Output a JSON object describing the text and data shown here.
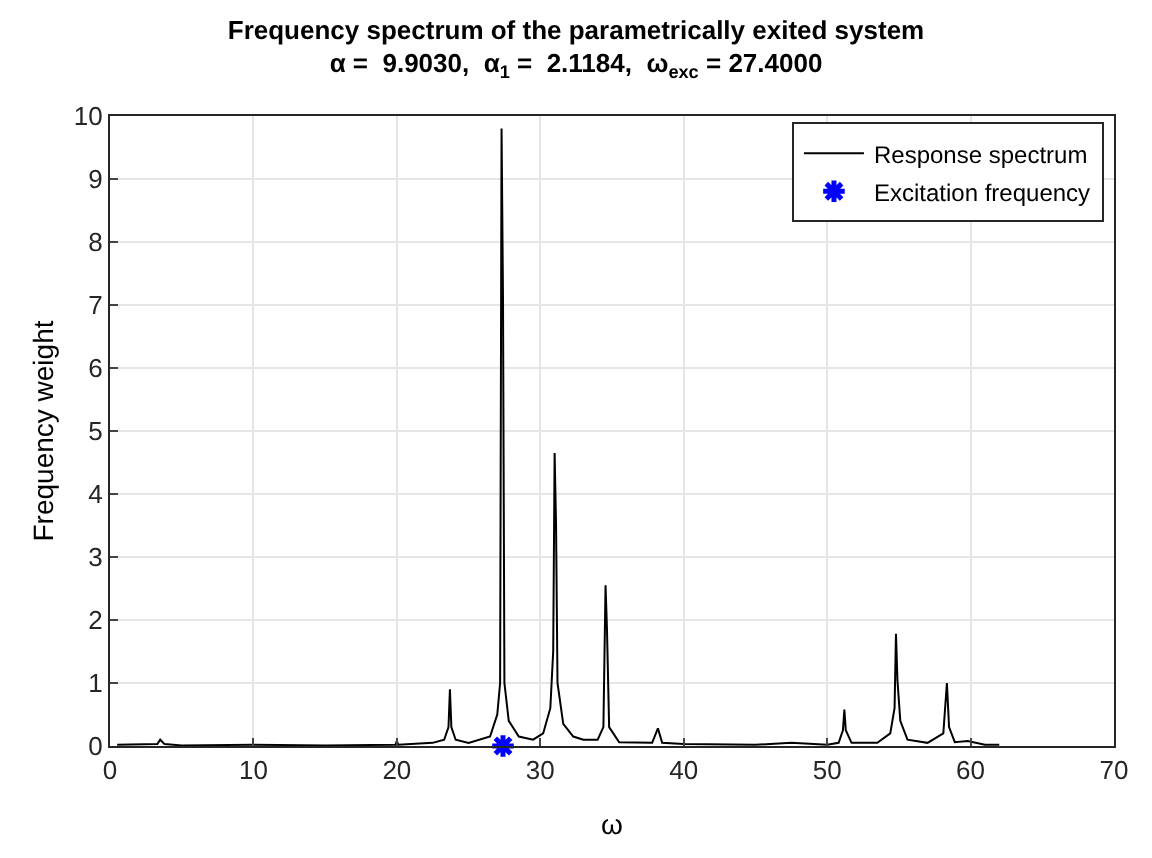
{
  "chart_data": {
    "type": "line",
    "title": "Frequency spectrum of the parametrically exited system",
    "subtitle": "α =  9.9030,  α$_{1}$ =  2.1184,  ω$_{exc}$ = 27.4000",
    "xlabel": "ω",
    "ylabel": "Frequency weight",
    "xlim": [
      0,
      70
    ],
    "xticks": [
      0,
      10,
      20,
      30,
      40,
      50,
      60,
      70
    ],
    "ylim": [
      0,
      10
    ],
    "yticks": [
      0,
      1,
      2,
      3,
      4,
      5,
      6,
      7,
      8,
      9,
      10
    ],
    "grid": true,
    "legend": "top right",
    "series": [
      {
        "name": "Response spectrum",
        "color": "#000000",
        "marker": "none",
        "x": [
          0.5,
          3.3,
          3.5,
          3.8,
          5,
          10,
          15,
          19.9,
          20,
          20.1,
          22.5,
          23.3,
          23.6,
          23.7,
          23.8,
          24.1,
          25,
          26.5,
          27.0,
          27.2,
          27.3,
          27.4,
          27.5,
          27.8,
          28.5,
          29.5,
          30.2,
          30.7,
          30.9,
          31.0,
          31.1,
          31.2,
          31.6,
          32.3,
          33,
          34,
          34.4,
          34.55,
          34.65,
          34.8,
          35.5,
          37.8,
          38.2,
          38.5,
          40,
          45,
          47.5,
          50,
          50.8,
          51.1,
          51.2,
          51.3,
          51.7,
          53.5,
          54.4,
          54.7,
          54.8,
          54.9,
          55.1,
          55.6,
          57,
          58.1,
          58.35,
          58.5,
          58.9,
          59.8,
          61,
          62
        ],
        "values": [
          0.02,
          0.03,
          0.1,
          0.03,
          0.01,
          0.02,
          0.01,
          0.02,
          0.08,
          0.02,
          0.05,
          0.1,
          0.3,
          0.9,
          0.3,
          0.1,
          0.05,
          0.15,
          0.5,
          1.0,
          9.8,
          7.1,
          1.0,
          0.4,
          0.15,
          0.1,
          0.2,
          0.6,
          1.5,
          4.65,
          3.5,
          1.0,
          0.35,
          0.15,
          0.1,
          0.1,
          0.3,
          2.55,
          1.85,
          0.3,
          0.06,
          0.05,
          0.28,
          0.05,
          0.03,
          0.02,
          0.05,
          0.02,
          0.05,
          0.25,
          0.58,
          0.25,
          0.05,
          0.05,
          0.2,
          0.6,
          1.78,
          1.05,
          0.4,
          0.1,
          0.05,
          0.2,
          1.0,
          0.3,
          0.06,
          0.08,
          0.02,
          0.02
        ]
      },
      {
        "name": "Excitation frequency",
        "type": "scatter",
        "color": "#0000ff",
        "marker": "cross",
        "x": [
          27.4
        ],
        "values": [
          0
        ]
      }
    ]
  }
}
